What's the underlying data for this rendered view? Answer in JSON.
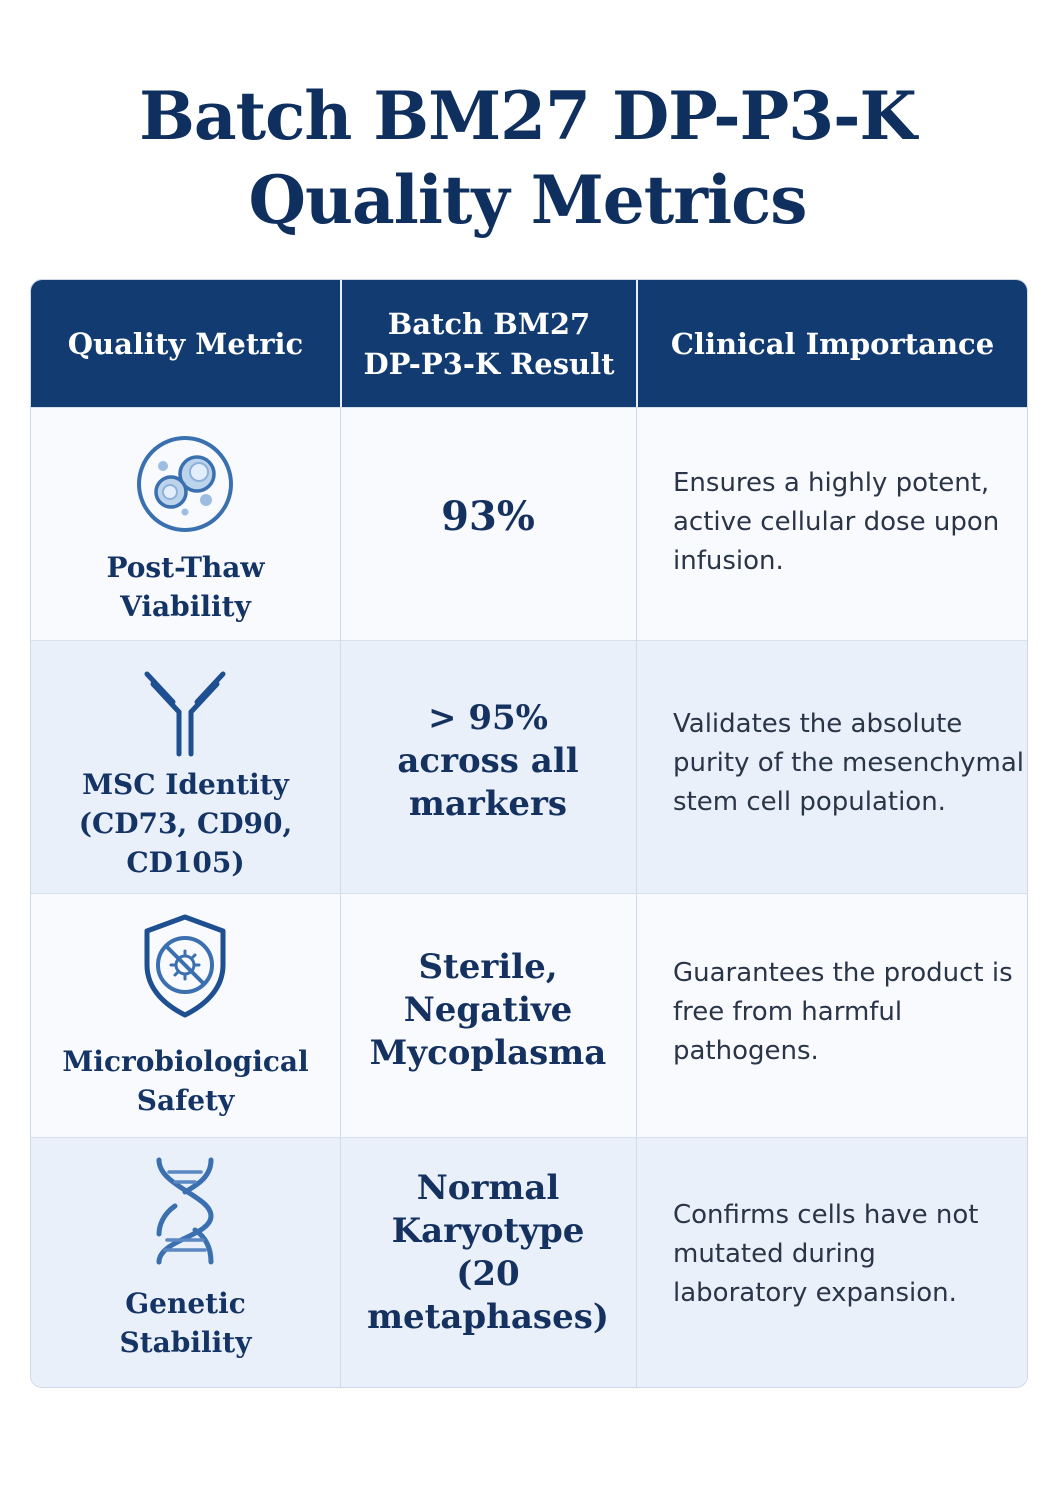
{
  "title": {
    "line1": "Batch BM27 DP-P3-K",
    "line2": "Quality Metrics"
  },
  "table": {
    "headers": {
      "metric": "Quality Metric",
      "result_line1": "Batch BM27",
      "result_line2": "DP-P3-K Result",
      "importance": "Clinical Importance"
    },
    "rows": [
      {
        "icon": "cells-icon",
        "metric_lines": [
          "Post-Thaw",
          "Viability"
        ],
        "result_lines": [
          "93%"
        ],
        "importance_lines": [
          "Ensures a highly potent,",
          "active cellular dose upon",
          "infusion."
        ]
      },
      {
        "icon": "antibody-icon",
        "metric_lines": [
          "MSC Identity",
          "(CD73, CD90,",
          "CD105)"
        ],
        "result_lines": [
          "> 95%",
          "across all",
          "markers"
        ],
        "importance_lines": [
          "Validates the absolute",
          "purity of the mesenchymal",
          "stem cell population."
        ]
      },
      {
        "icon": "shield-virus-icon",
        "metric_lines": [
          "Microbiological",
          "Safety"
        ],
        "result_lines": [
          "Sterile,",
          "Negative",
          "Mycoplasma"
        ],
        "importance_lines": [
          "Guarantees the product is",
          "free from harmful",
          "pathogens."
        ]
      },
      {
        "icon": "dna-icon",
        "metric_lines": [
          "Genetic",
          "Stability"
        ],
        "result_lines": [
          "Normal",
          "Karyotype",
          "(20 metaphases)"
        ],
        "importance_lines": [
          "Confirms cells have not",
          "mutated during",
          "laboratory expansion."
        ]
      }
    ]
  }
}
